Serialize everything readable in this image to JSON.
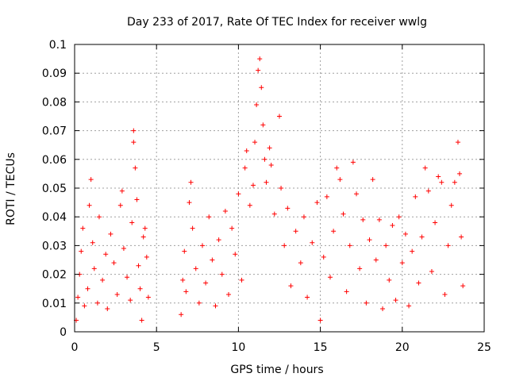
{
  "chart_data": {
    "type": "scatter",
    "title": "Day 233 of 2017, Rate Of TEC Index for receiver wwlg",
    "xlabel": "GPS time / hours",
    "ylabel": "ROTI / TECUs",
    "xlim": [
      0,
      25
    ],
    "ylim": [
      0,
      0.1
    ],
    "x_ticks": [
      0,
      5,
      10,
      15,
      20,
      25
    ],
    "x_tick_labels": [
      "0",
      "5",
      "10",
      "15",
      "20",
      "25"
    ],
    "y_ticks": [
      0,
      0.01,
      0.02,
      0.03,
      0.04,
      0.05,
      0.06,
      0.07,
      0.08,
      0.09,
      0.1
    ],
    "y_tick_labels": [
      "0",
      "0.01",
      "0.02",
      "0.03",
      "0.04",
      "0.05",
      "0.06",
      "0.07",
      "0.08",
      "0.09",
      "0.1"
    ],
    "grid": true,
    "marker": "+",
    "color": "#ff0000",
    "data_gap_hours": [
      4.6,
      6.4
    ],
    "series": [
      {
        "name": "ROTI",
        "points": [
          [
            0.1,
            0.004
          ],
          [
            0.2,
            0.012
          ],
          [
            0.3,
            0.02
          ],
          [
            0.4,
            0.028
          ],
          [
            0.5,
            0.036
          ],
          [
            0.6,
            0.009
          ],
          [
            0.8,
            0.015
          ],
          [
            0.9,
            0.044
          ],
          [
            1.0,
            0.053
          ],
          [
            1.1,
            0.031
          ],
          [
            1.2,
            0.022
          ],
          [
            1.4,
            0.01
          ],
          [
            1.5,
            0.04
          ],
          [
            1.7,
            0.018
          ],
          [
            1.9,
            0.027
          ],
          [
            2.0,
            0.008
          ],
          [
            2.2,
            0.034
          ],
          [
            2.4,
            0.024
          ],
          [
            2.6,
            0.013
          ],
          [
            2.8,
            0.044
          ],
          [
            2.9,
            0.049
          ],
          [
            3.0,
            0.029
          ],
          [
            3.2,
            0.019
          ],
          [
            3.4,
            0.011
          ],
          [
            3.5,
            0.038
          ],
          [
            3.6,
            0.07
          ],
          [
            3.6,
            0.066
          ],
          [
            3.7,
            0.057
          ],
          [
            3.8,
            0.046
          ],
          [
            3.9,
            0.023
          ],
          [
            4.0,
            0.015
          ],
          [
            4.1,
            0.004
          ],
          [
            4.2,
            0.033
          ],
          [
            4.3,
            0.036
          ],
          [
            4.4,
            0.026
          ],
          [
            4.5,
            0.012
          ],
          [
            6.5,
            0.006
          ],
          [
            6.6,
            0.018
          ],
          [
            6.7,
            0.028
          ],
          [
            6.8,
            0.014
          ],
          [
            7.0,
            0.045
          ],
          [
            7.1,
            0.052
          ],
          [
            7.2,
            0.036
          ],
          [
            7.4,
            0.022
          ],
          [
            7.6,
            0.01
          ],
          [
            7.8,
            0.03
          ],
          [
            8.0,
            0.017
          ],
          [
            8.2,
            0.04
          ],
          [
            8.4,
            0.025
          ],
          [
            8.6,
            0.009
          ],
          [
            8.8,
            0.032
          ],
          [
            9.0,
            0.02
          ],
          [
            9.2,
            0.042
          ],
          [
            9.4,
            0.013
          ],
          [
            9.6,
            0.036
          ],
          [
            9.8,
            0.027
          ],
          [
            10.0,
            0.048
          ],
          [
            10.2,
            0.018
          ],
          [
            10.4,
            0.057
          ],
          [
            10.5,
            0.063
          ],
          [
            10.7,
            0.044
          ],
          [
            10.9,
            0.051
          ],
          [
            11.0,
            0.066
          ],
          [
            11.1,
            0.079
          ],
          [
            11.2,
            0.091
          ],
          [
            11.3,
            0.095
          ],
          [
            11.4,
            0.085
          ],
          [
            11.5,
            0.072
          ],
          [
            11.6,
            0.06
          ],
          [
            11.7,
            0.052
          ],
          [
            11.9,
            0.064
          ],
          [
            12.0,
            0.058
          ],
          [
            12.2,
            0.041
          ],
          [
            12.5,
            0.075
          ],
          [
            12.6,
            0.05
          ],
          [
            12.8,
            0.03
          ],
          [
            13.0,
            0.043
          ],
          [
            13.2,
            0.016
          ],
          [
            13.5,
            0.035
          ],
          [
            13.8,
            0.024
          ],
          [
            14.0,
            0.04
          ],
          [
            14.2,
            0.012
          ],
          [
            14.5,
            0.031
          ],
          [
            14.8,
            0.045
          ],
          [
            15.0,
            0.004
          ],
          [
            15.2,
            0.026
          ],
          [
            15.4,
            0.047
          ],
          [
            15.6,
            0.019
          ],
          [
            15.8,
            0.035
          ],
          [
            16.0,
            0.057
          ],
          [
            16.2,
            0.053
          ],
          [
            16.4,
            0.041
          ],
          [
            16.6,
            0.014
          ],
          [
            16.8,
            0.03
          ],
          [
            17.0,
            0.059
          ],
          [
            17.2,
            0.048
          ],
          [
            17.4,
            0.022
          ],
          [
            17.6,
            0.039
          ],
          [
            17.8,
            0.01
          ],
          [
            18.0,
            0.032
          ],
          [
            18.2,
            0.053
          ],
          [
            18.4,
            0.025
          ],
          [
            18.6,
            0.039
          ],
          [
            18.8,
            0.008
          ],
          [
            19.0,
            0.03
          ],
          [
            19.2,
            0.018
          ],
          [
            19.4,
            0.037
          ],
          [
            19.6,
            0.011
          ],
          [
            19.8,
            0.04
          ],
          [
            20.0,
            0.024
          ],
          [
            20.2,
            0.034
          ],
          [
            20.4,
            0.009
          ],
          [
            20.6,
            0.028
          ],
          [
            20.8,
            0.047
          ],
          [
            21.0,
            0.017
          ],
          [
            21.2,
            0.033
          ],
          [
            21.4,
            0.057
          ],
          [
            21.6,
            0.049
          ],
          [
            21.8,
            0.021
          ],
          [
            22.0,
            0.038
          ],
          [
            22.2,
            0.054
          ],
          [
            22.4,
            0.052
          ],
          [
            22.6,
            0.013
          ],
          [
            22.8,
            0.03
          ],
          [
            23.0,
            0.044
          ],
          [
            23.2,
            0.052
          ],
          [
            23.4,
            0.066
          ],
          [
            23.5,
            0.055
          ],
          [
            23.6,
            0.033
          ],
          [
            23.7,
            0.016
          ]
        ]
      }
    ]
  }
}
